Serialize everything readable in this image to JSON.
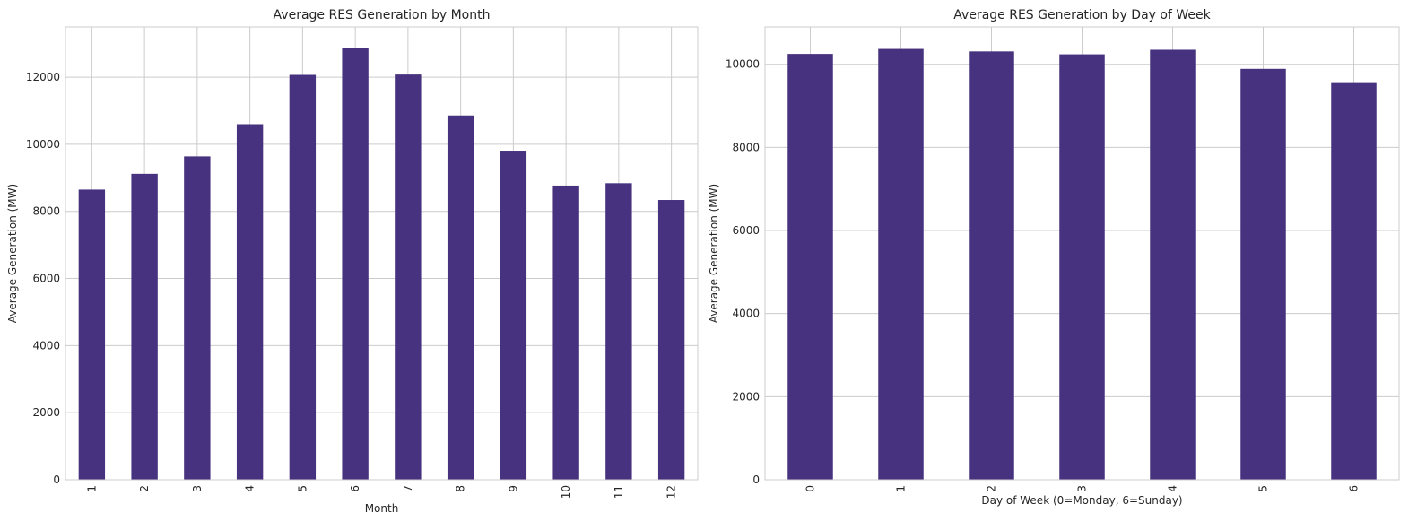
{
  "colors": {
    "bar": "#46327e",
    "grid": "#cccccc",
    "text": "#262626"
  },
  "chart_data": [
    {
      "type": "bar",
      "title": "Average RES Generation by Month",
      "xlabel": "Month",
      "ylabel": "Average Generation (MW)",
      "categories": [
        "1",
        "2",
        "3",
        "4",
        "5",
        "6",
        "7",
        "8",
        "9",
        "10",
        "11",
        "12"
      ],
      "values": [
        8650,
        9120,
        9640,
        10600,
        12070,
        12880,
        12080,
        10860,
        9810,
        8770,
        8840,
        8340
      ],
      "ylim": [
        0,
        13500
      ],
      "yticks": [
        0,
        2000,
        4000,
        6000,
        8000,
        10000,
        12000
      ],
      "grid": true
    },
    {
      "type": "bar",
      "title": "Average RES Generation by Day of Week",
      "xlabel": "Day of Week (0=Monday, 6=Sunday)",
      "ylabel": "Average Generation (MW)",
      "categories": [
        "0",
        "1",
        "2",
        "3",
        "4",
        "5",
        "6"
      ],
      "values": [
        10250,
        10370,
        10310,
        10240,
        10350,
        9890,
        9570
      ],
      "ylim": [
        0,
        10900
      ],
      "yticks": [
        0,
        2000,
        4000,
        6000,
        8000,
        10000
      ],
      "grid": true
    }
  ]
}
